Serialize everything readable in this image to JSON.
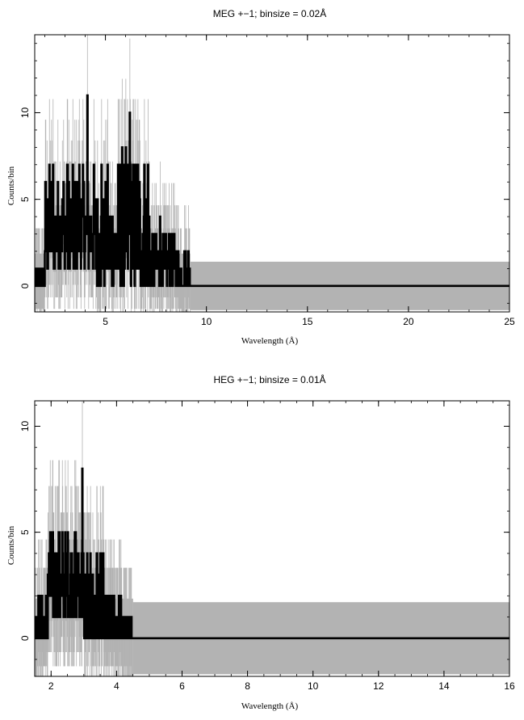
{
  "chart_data": [
    {
      "type": "line",
      "title": "MEG +−1; binsize = 0.02Å",
      "xlabel": "Wavelength (Å)",
      "ylabel": "Counts/bin",
      "xlim": [
        1.5,
        25
      ],
      "ylim": [
        -1.5,
        14.5
      ],
      "grid": false,
      "xticks": [
        5,
        10,
        15,
        20,
        25
      ],
      "xtick_labels": [
        "5",
        "10",
        "15",
        "20",
        "25"
      ],
      "yticks": [
        0,
        5,
        10
      ],
      "ytick_labels": [
        "0",
        "5",
        "10"
      ],
      "series": [
        {
          "role": "counts",
          "color": "#000000",
          "step_start": 1.5,
          "bin_width": 0.02,
          "segments": [
            {
              "x": [
                1.5,
                2.0
              ],
              "lo": 0,
              "hi": 1
            },
            {
              "x": [
                2.0,
                4.5
              ],
              "lo": 1,
              "hi": 7
            },
            {
              "x": [
                4.5,
                5.6
              ],
              "lo": 0,
              "hi": 6
            },
            {
              "x": [
                5.6,
                7.2
              ],
              "lo": 0,
              "hi": 8
            },
            {
              "x": [
                7.2,
                8.6
              ],
              "lo": 0,
              "hi": 3
            },
            {
              "x": [
                8.6,
                9.2
              ],
              "lo": 0,
              "hi": 2
            },
            {
              "x": [
                9.2,
                25
              ],
              "lo": 0,
              "hi": 0
            }
          ],
          "peaks": [
            {
              "x": 4.1,
              "y": 11
            },
            {
              "x": 6.2,
              "y": 10
            },
            {
              "x": 2.4,
              "y": 7
            },
            {
              "x": 3.1,
              "y": 7
            },
            {
              "x": 3.7,
              "y": 7
            },
            {
              "x": 4.8,
              "y": 7
            },
            {
              "x": 5.1,
              "y": 7
            },
            {
              "x": 6.6,
              "y": 7
            },
            {
              "x": 7.1,
              "y": 7
            },
            {
              "x": 7.7,
              "y": 4
            },
            {
              "x": 9.1,
              "y": 2
            }
          ]
        },
        {
          "role": "error-band",
          "color": "#b3b3b3",
          "x_start": 9.2,
          "x_end": 25,
          "y_range": [
            -1.4,
            1.4
          ]
        }
      ]
    },
    {
      "type": "line",
      "title": "HEG +−1; binsize = 0.01Å",
      "xlabel": "Wavelength (Å)",
      "ylabel": "Counts/bin",
      "xlim": [
        1.5,
        16
      ],
      "ylim": [
        -1.8,
        11.2
      ],
      "grid": false,
      "xticks": [
        2,
        4,
        6,
        8,
        10,
        12,
        14,
        16
      ],
      "xtick_labels": [
        "2",
        "4",
        "6",
        "8",
        "10",
        "12",
        "14",
        "16"
      ],
      "yticks": [
        0,
        5,
        10
      ],
      "ytick_labels": [
        "0",
        "5",
        "10"
      ],
      "series": [
        {
          "role": "counts",
          "color": "#000000",
          "step_start": 1.5,
          "bin_width": 0.01,
          "segments": [
            {
              "x": [
                1.5,
                1.9
              ],
              "lo": 0,
              "hi": 2
            },
            {
              "x": [
                1.9,
                3.0
              ],
              "lo": 1,
              "hi": 5
            },
            {
              "x": [
                3.0,
                3.6
              ],
              "lo": 0,
              "hi": 4
            },
            {
              "x": [
                3.6,
                4.15
              ],
              "lo": 0,
              "hi": 2
            },
            {
              "x": [
                4.15,
                4.5
              ],
              "lo": 0,
              "hi": 1
            },
            {
              "x": [
                4.5,
                16
              ],
              "lo": 0,
              "hi": 0
            }
          ],
          "peaks": [
            {
              "x": 2.95,
              "y": 8
            },
            {
              "x": 2.25,
              "y": 5
            },
            {
              "x": 2.75,
              "y": 5
            },
            {
              "x": 3.1,
              "y": 4
            },
            {
              "x": 3.4,
              "y": 4
            }
          ]
        },
        {
          "role": "error-band",
          "color": "#b3b3b3",
          "x_start": 4.5,
          "x_end": 16,
          "y_range": [
            -1.7,
            1.7
          ]
        }
      ]
    }
  ]
}
